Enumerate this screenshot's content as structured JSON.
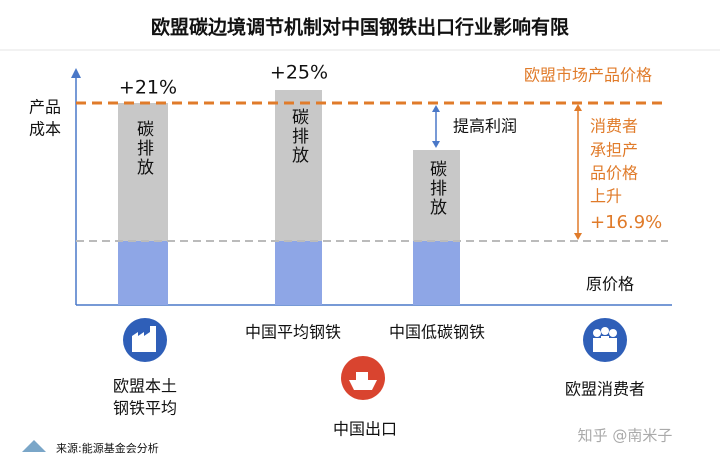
{
  "title": "欧盟碳边境调节机制对中国钢铁出口行业影响有限",
  "y_axis_label": [
    "产品",
    "成本"
  ],
  "bars": [
    {
      "change": "+21%",
      "segment": "碳排放",
      "label": [
        "欧盟本土",
        "钢铁平均"
      ]
    },
    {
      "change": "+25%",
      "segment": "碳排放",
      "label": [
        "中国平均钢铁"
      ]
    },
    {
      "segment": "碳排放",
      "label": [
        "中国低碳钢铁"
      ]
    }
  ],
  "exports_label": "中国出口",
  "consumers_label": "欧盟消费者",
  "eu_price_label": "欧盟市场产品价格",
  "profit_label": "提高利润",
  "consumer_note": [
    "消费者",
    "承担产",
    "品价格",
    "上升",
    "+16.9%"
  ],
  "original_price_label": "原价格",
  "source": "来源:能源基金会分析",
  "watermark": "知乎 @南米子"
}
